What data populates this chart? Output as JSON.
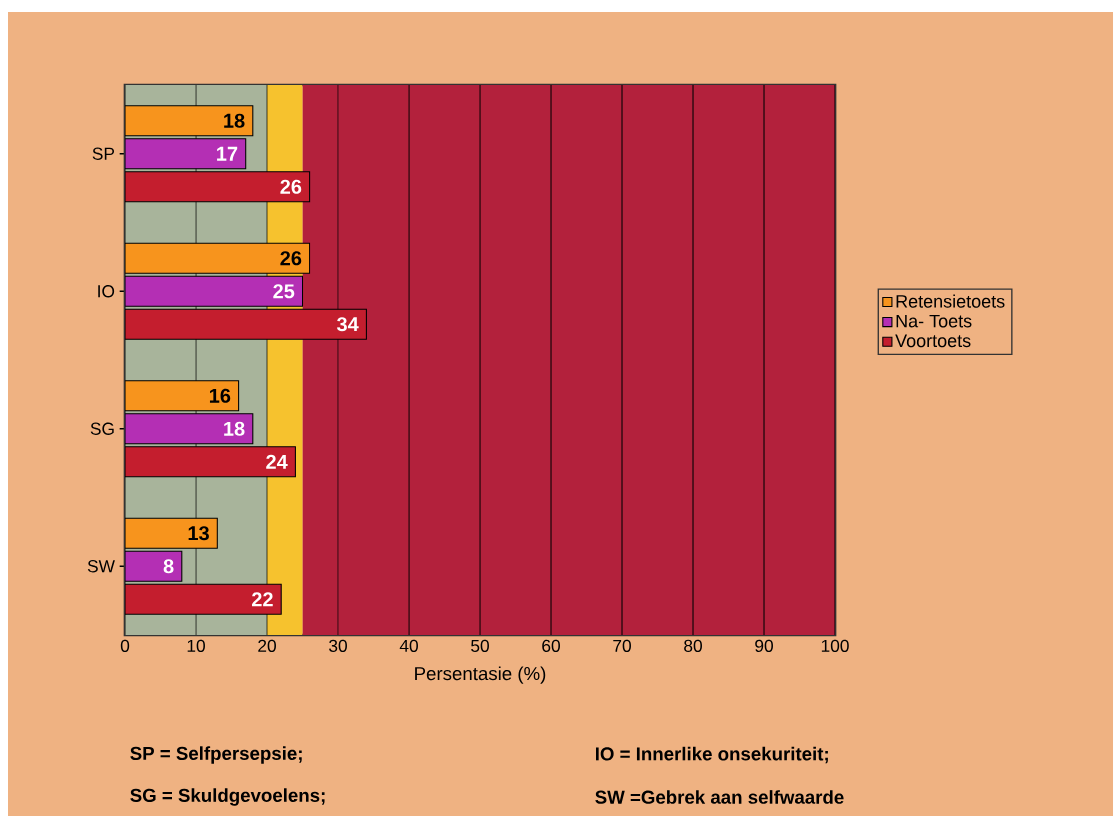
{
  "chart_data": {
    "type": "bar",
    "orientation": "horizontal",
    "categories": [
      "SP",
      "IO",
      "SG",
      "SW"
    ],
    "series": [
      {
        "name": "Retensietoets",
        "color": "#f7941d",
        "values": [
          18,
          26,
          16,
          13
        ]
      },
      {
        "name": "Na- Toets",
        "color": "#b42fb4",
        "values": [
          17,
          25,
          18,
          8
        ]
      },
      {
        "name": "Voortoets",
        "color": "#c41e2e",
        "values": [
          26,
          34,
          24,
          22
        ]
      }
    ],
    "data_labels": true,
    "xlim": [
      0,
      100
    ],
    "xticks": [
      0,
      10,
      20,
      30,
      40,
      50,
      60,
      70,
      80,
      90,
      100
    ],
    "xlabel": "Persentasie (%)",
    "grid": "x",
    "legend": "right",
    "bands": [
      {
        "axis": "x",
        "from": 0,
        "to": 20,
        "color": "#a8b49b"
      },
      {
        "axis": "x",
        "from": 20,
        "to": 25,
        "color": "#f6c22e"
      },
      {
        "axis": "x",
        "from": 25,
        "to": 100,
        "color": "#b3213c"
      }
    ],
    "annotations": [
      "SP = Selfpersepsie;",
      "IO = Innerlike onsekuriteit;",
      "SG = Skuldgevoelens;",
      "SW =Gebrek aan selfwaarde"
    ]
  }
}
